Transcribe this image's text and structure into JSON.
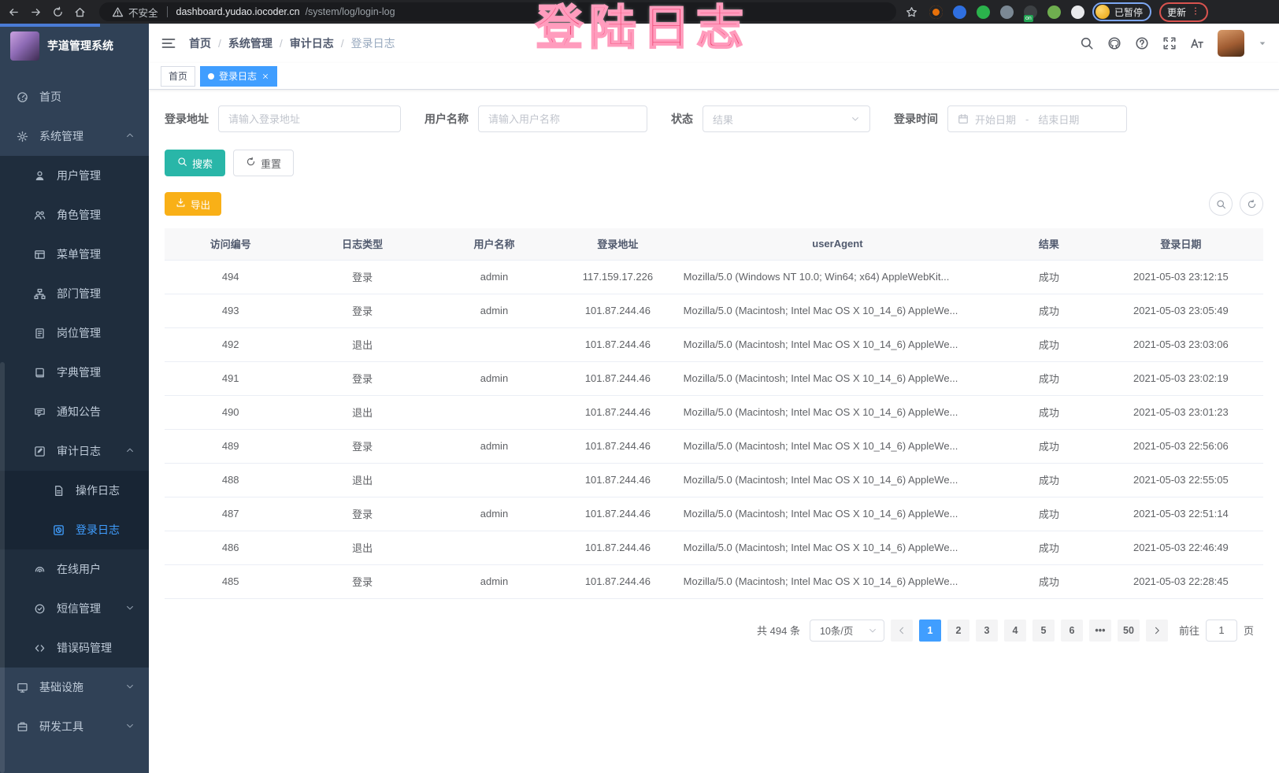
{
  "browser": {
    "security_label": "不安全",
    "url_host": "dashboard.yudao.iocoder.cn",
    "url_path": "/system/log/login-log",
    "profile_badge": "已暂停",
    "update_label": "更新",
    "extensions": [
      {
        "name": "extension-orange-ring",
        "color": "#e8710a"
      },
      {
        "name": "extension-blue-gem",
        "color": "#2f6fe0"
      },
      {
        "name": "extension-green-circle",
        "color": "#2bb24c"
      },
      {
        "name": "extension-grid",
        "color": "#7b8894"
      },
      {
        "name": "extension-list",
        "color": "#3c4043",
        "badge": "on"
      },
      {
        "name": "extension-sprout",
        "color": "#6fae4f"
      },
      {
        "name": "extension-puzzle",
        "color": "#e9eaed"
      }
    ]
  },
  "overlay": {
    "text": "登陆日志"
  },
  "sidebar": {
    "app_title": "芋道管理系统",
    "items": [
      {
        "label": "首页",
        "icon": "dashboard",
        "level": 0
      },
      {
        "label": "系统管理",
        "icon": "gear",
        "level": 0,
        "expand": "up"
      },
      {
        "label": "用户管理",
        "icon": "user",
        "level": 1
      },
      {
        "label": "角色管理",
        "icon": "users",
        "level": 1
      },
      {
        "label": "菜单管理",
        "icon": "menu-list",
        "level": 1
      },
      {
        "label": "部门管理",
        "icon": "org-tree",
        "level": 1
      },
      {
        "label": "岗位管理",
        "icon": "post-badge",
        "level": 1
      },
      {
        "label": "字典管理",
        "icon": "dictionary",
        "level": 1
      },
      {
        "label": "通知公告",
        "icon": "announcement",
        "level": 1
      },
      {
        "label": "审计日志",
        "icon": "audit-log",
        "level": 1,
        "expand": "up"
      },
      {
        "label": "操作日志",
        "icon": "operation-log",
        "level": 2
      },
      {
        "label": "登录日志",
        "icon": "login-log",
        "level": 2,
        "active": true
      },
      {
        "label": "在线用户",
        "icon": "online-user",
        "level": 1
      },
      {
        "label": "短信管理",
        "icon": "sms",
        "level": 1,
        "expand": "down"
      },
      {
        "label": "错误码管理",
        "icon": "error-code",
        "level": 1
      },
      {
        "label": "基础设施",
        "icon": "infrastructure",
        "level": 0,
        "expand": "down"
      },
      {
        "label": "研发工具",
        "icon": "dev-tools",
        "level": 0,
        "expand": "down"
      }
    ]
  },
  "breadcrumb": {
    "items": [
      "首页",
      "系统管理",
      "审计日志",
      "登录日志"
    ],
    "separator": "/"
  },
  "tags": [
    {
      "label": "首页",
      "active": false
    },
    {
      "label": "登录日志",
      "active": true,
      "closable": true
    }
  ],
  "filters": {
    "login_address": {
      "label": "登录地址",
      "placeholder": "请输入登录地址"
    },
    "username": {
      "label": "用户名称",
      "placeholder": "请输入用户名称"
    },
    "status": {
      "label": "状态",
      "placeholder": "结果"
    },
    "login_time": {
      "label": "登录时间",
      "start_placeholder": "开始日期",
      "separator": "-",
      "end_placeholder": "结束日期"
    },
    "search_label": "搜索",
    "reset_label": "重置"
  },
  "toolbar": {
    "export_label": "导出"
  },
  "table": {
    "headers": [
      "访问编号",
      "日志类型",
      "用户名称",
      "登录地址",
      "userAgent",
      "结果",
      "登录日期"
    ],
    "rows": [
      [
        "494",
        "登录",
        "admin",
        "117.159.17.226",
        "Mozilla/5.0 (Windows NT 10.0; Win64; x64) AppleWebKit...",
        "成功",
        "2021-05-03 23:12:15"
      ],
      [
        "493",
        "登录",
        "admin",
        "101.87.244.46",
        "Mozilla/5.0 (Macintosh; Intel Mac OS X 10_14_6) AppleWe...",
        "成功",
        "2021-05-03 23:05:49"
      ],
      [
        "492",
        "退出",
        "",
        "101.87.244.46",
        "Mozilla/5.0 (Macintosh; Intel Mac OS X 10_14_6) AppleWe...",
        "成功",
        "2021-05-03 23:03:06"
      ],
      [
        "491",
        "登录",
        "admin",
        "101.87.244.46",
        "Mozilla/5.0 (Macintosh; Intel Mac OS X 10_14_6) AppleWe...",
        "成功",
        "2021-05-03 23:02:19"
      ],
      [
        "490",
        "退出",
        "",
        "101.87.244.46",
        "Mozilla/5.0 (Macintosh; Intel Mac OS X 10_14_6) AppleWe...",
        "成功",
        "2021-05-03 23:01:23"
      ],
      [
        "489",
        "登录",
        "admin",
        "101.87.244.46",
        "Mozilla/5.0 (Macintosh; Intel Mac OS X 10_14_6) AppleWe...",
        "成功",
        "2021-05-03 22:56:06"
      ],
      [
        "488",
        "退出",
        "",
        "101.87.244.46",
        "Mozilla/5.0 (Macintosh; Intel Mac OS X 10_14_6) AppleWe...",
        "成功",
        "2021-05-03 22:55:05"
      ],
      [
        "487",
        "登录",
        "admin",
        "101.87.244.46",
        "Mozilla/5.0 (Macintosh; Intel Mac OS X 10_14_6) AppleWe...",
        "成功",
        "2021-05-03 22:51:14"
      ],
      [
        "486",
        "退出",
        "",
        "101.87.244.46",
        "Mozilla/5.0 (Macintosh; Intel Mac OS X 10_14_6) AppleWe...",
        "成功",
        "2021-05-03 22:46:49"
      ],
      [
        "485",
        "登录",
        "admin",
        "101.87.244.46",
        "Mozilla/5.0 (Macintosh; Intel Mac OS X 10_14_6) AppleWe...",
        "成功",
        "2021-05-03 22:28:45"
      ]
    ]
  },
  "pagination": {
    "total": "共 494 条",
    "page_size": "10条/页",
    "pages": [
      "1",
      "2",
      "3",
      "4",
      "5",
      "6",
      "•••",
      "50"
    ],
    "active_page": "1",
    "goto_label": "前往",
    "goto_value": "1",
    "page_label": "页"
  },
  "colors": {
    "accent_blue": "#409eff",
    "search_teal": "#29b6a8",
    "export_amber": "#f9b017",
    "sidebar_bg": "#304156",
    "submenu_bg": "#1f2d3d",
    "annotation_pink": "#ee3a6b"
  }
}
